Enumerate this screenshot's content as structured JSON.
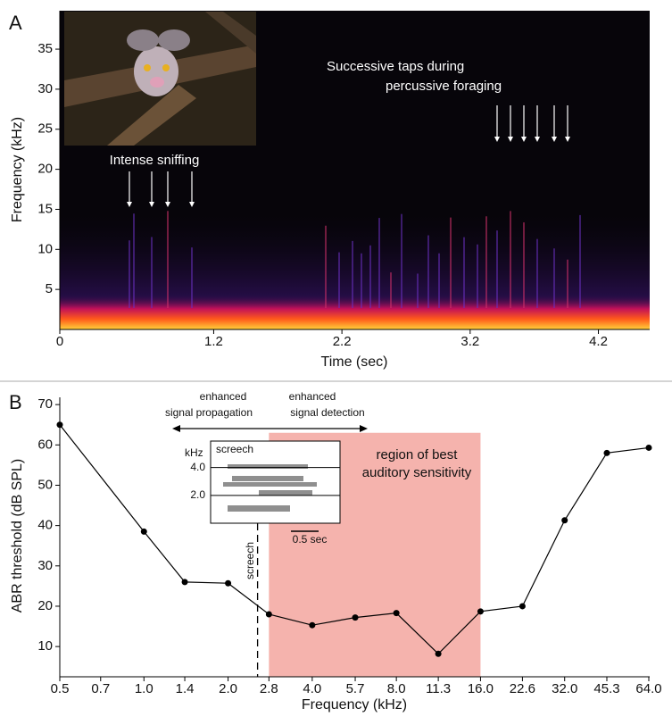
{
  "chart_data": [
    {
      "type": "spectrogram",
      "panel_label": "A",
      "xlabel": "Time (sec)",
      "ylabel": "Frequency (kHz)",
      "xlim": [
        0,
        4.6
      ],
      "ylim": [
        0,
        39.8
      ],
      "xticks": [
        0,
        1.2,
        2.2,
        3.2,
        4.2
      ],
      "yticks": [
        5,
        10,
        15,
        20,
        25,
        30,
        35
      ],
      "annotations": [
        "Intense sniffing",
        "Successive taps during",
        "percussive foraging"
      ]
    },
    {
      "type": "line",
      "panel_label": "B",
      "xlabel": "Frequency (kHz)",
      "ylabel": "ABR threshold (dB SPL)",
      "log_x": true,
      "xlim": [
        0.5,
        64
      ],
      "ylim": [
        2.5,
        71.8
      ],
      "xticks": [
        0.5,
        0.7,
        {
          "value": 1,
          "label": "1.0"
        },
        1.4,
        {
          "value": 2,
          "label": "2.0"
        },
        2.8,
        {
          "value": 4,
          "label": "4.0"
        },
        5.7,
        {
          "value": 8,
          "label": "8.0"
        },
        11.3,
        {
          "value": 16,
          "label": "16.0"
        },
        22.6,
        {
          "value": 32,
          "label": "32.0"
        },
        45.3,
        {
          "value": 64,
          "label": "64.0"
        }
      ],
      "yticks": [
        10,
        20,
        30,
        40,
        50,
        60,
        70
      ],
      "series": [
        {
          "color": "#000000",
          "x": [
            0.5,
            1,
            1.4,
            2,
            2.8,
            4,
            5.7,
            8,
            11.3,
            16,
            22.6,
            32,
            45.3,
            64
          ],
          "values": [
            65,
            38.5,
            26,
            25.7,
            18,
            15.3,
            17.2,
            18.3,
            8.2,
            18.7,
            20,
            41.3,
            58,
            59.3
          ]
        }
      ],
      "shaded_region": {
        "label": [
          "region of best",
          "auditory sensitivity"
        ],
        "x": [
          2.8,
          16
        ],
        "top": 63,
        "color": "#f5b3ad"
      },
      "screech_line": {
        "x": 2.55,
        "label": "screech"
      },
      "arrow_labels": {
        "left": [
          "enhanced",
          "signal propagation"
        ],
        "right": [
          "enhanced",
          "signal detection"
        ]
      },
      "inset": {
        "title": "screech",
        "ylabel": "kHz",
        "ylim": [
          0,
          5.9
        ],
        "yticks": [
          {
            "value": 4,
            "label": "4.0"
          },
          {
            "value": 2,
            "label": "2.0"
          }
        ],
        "scale_bar": "0.5 sec"
      }
    }
  ]
}
